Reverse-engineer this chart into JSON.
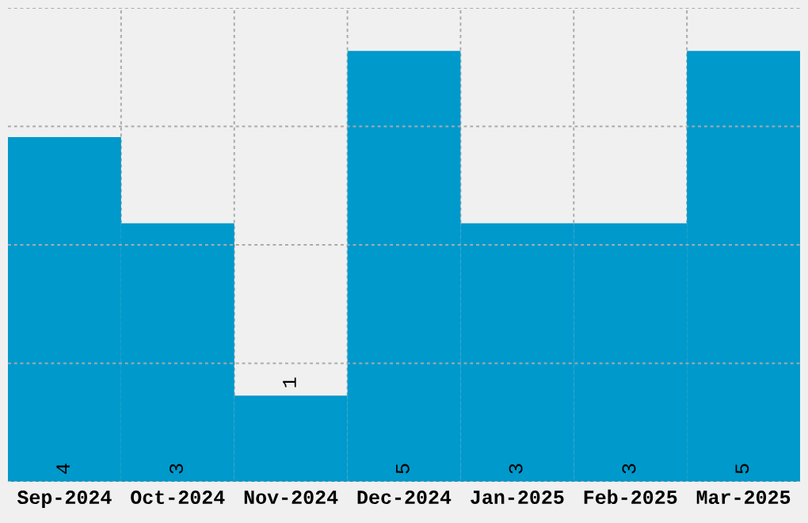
{
  "chart_data": {
    "type": "bar",
    "categories": [
      "Sep-2024",
      "Oct-2024",
      "Nov-2024",
      "Dec-2024",
      "Jan-2025",
      "Feb-2025",
      "Mar-2025"
    ],
    "values": [
      4,
      3,
      1,
      5,
      3,
      3,
      5
    ],
    "color": "#0099cc",
    "ylim": [
      0,
      5.5
    ],
    "yticks": [
      {
        "value": 0,
        "label": null
      },
      {
        "value": 1.375,
        "label": null
      },
      {
        "value": 2.75,
        "label": null
      },
      {
        "value": 4.125,
        "label": null
      },
      {
        "value": 5.5,
        "label": null
      }
    ],
    "tick_labels": "x",
    "data_labels": true,
    "grid": true
  }
}
